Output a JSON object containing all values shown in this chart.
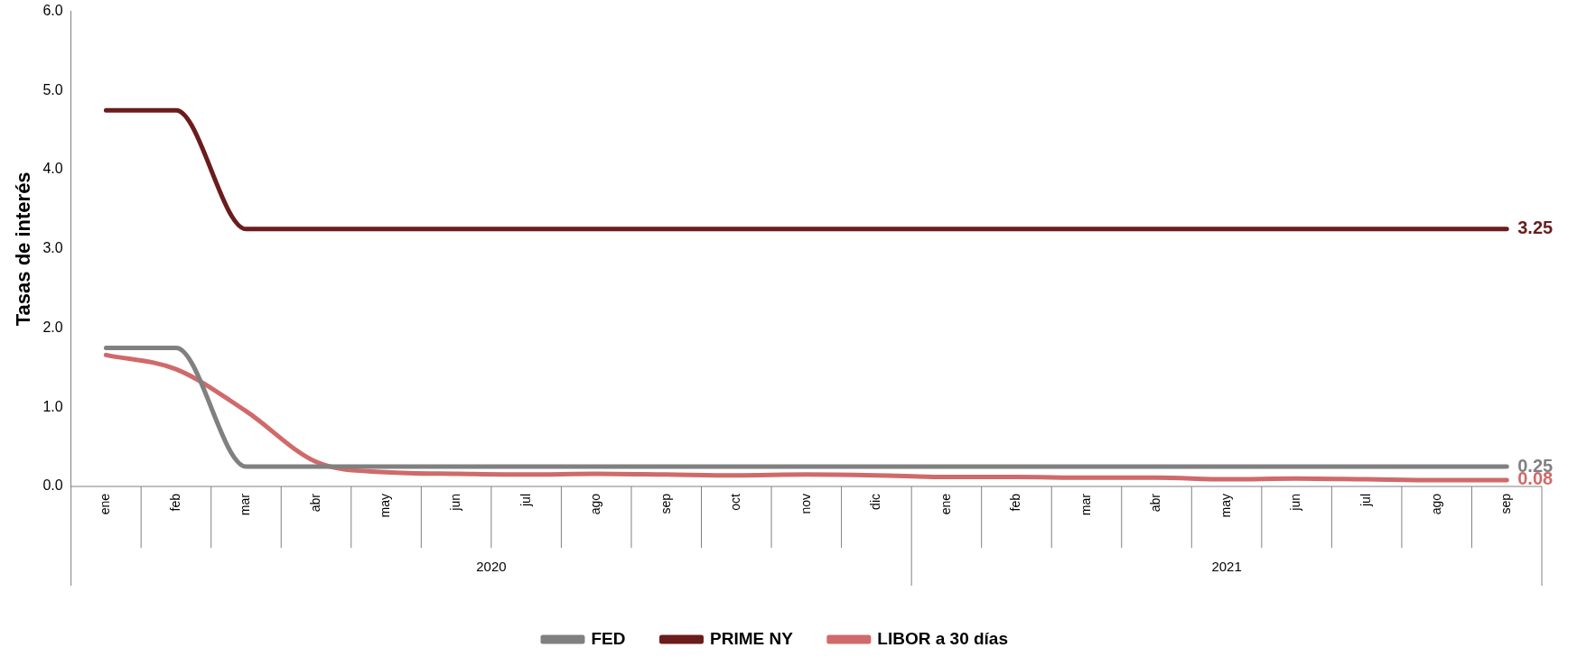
{
  "chart_data": {
    "type": "line",
    "ylabel": "Tasas de interés",
    "categories": [
      "ene",
      "feb",
      "mar",
      "abr",
      "may",
      "jun",
      "jul",
      "ago",
      "sep",
      "oct",
      "nov",
      "dic",
      "ene",
      "feb",
      "mar",
      "abr",
      "may",
      "jun",
      "jul",
      "ago",
      "sep"
    ],
    "annotations": [
      "2020",
      "2021"
    ],
    "ylim": [
      0,
      6
    ],
    "yticks": [
      {
        "value": 0,
        "label": "0.0"
      },
      {
        "value": 1,
        "label": "1.0"
      },
      {
        "value": 2,
        "label": "2.0"
      },
      {
        "value": 3,
        "label": "3.0"
      },
      {
        "value": 4,
        "label": "4.0"
      },
      {
        "value": 5,
        "label": "5.0"
      },
      {
        "value": 6,
        "label": "6.0"
      }
    ],
    "grid": false,
    "legend": "bottom",
    "marker": "none",
    "line_style": "solid",
    "series": [
      {
        "name": "FED",
        "color": "#808080",
        "values": [
          1.75,
          1.75,
          0.25,
          0.25,
          0.25,
          0.25,
          0.25,
          0.25,
          0.25,
          0.25,
          0.25,
          0.25,
          0.25,
          0.25,
          0.25,
          0.25,
          0.25,
          0.25,
          0.25,
          0.25,
          0.25
        ],
        "value_labels": [
          null,
          null,
          null,
          null,
          null,
          null,
          null,
          null,
          null,
          null,
          null,
          null,
          null,
          null,
          null,
          null,
          null,
          null,
          null,
          null,
          "0.25"
        ]
      },
      {
        "name": "PRIME NY",
        "color": "#6b1c1c",
        "values": [
          4.75,
          4.75,
          3.25,
          3.25,
          3.25,
          3.25,
          3.25,
          3.25,
          3.25,
          3.25,
          3.25,
          3.25,
          3.25,
          3.25,
          3.25,
          3.25,
          3.25,
          3.25,
          3.25,
          3.25,
          3.25
        ],
        "value_labels": [
          null,
          null,
          null,
          null,
          null,
          null,
          null,
          null,
          null,
          null,
          null,
          null,
          null,
          null,
          null,
          null,
          null,
          null,
          null,
          null,
          "3.25"
        ]
      },
      {
        "name": "LIBOR a 30 días",
        "color": "#d06a6a",
        "values": [
          1.66,
          1.48,
          0.95,
          0.31,
          0.18,
          0.16,
          0.15,
          0.16,
          0.15,
          0.14,
          0.15,
          0.14,
          0.12,
          0.12,
          0.11,
          0.11,
          0.09,
          0.1,
          0.09,
          0.08,
          0.08
        ],
        "value_labels": [
          null,
          null,
          null,
          null,
          null,
          null,
          null,
          null,
          null,
          null,
          null,
          null,
          null,
          null,
          null,
          null,
          null,
          null,
          null,
          null,
          "0.08"
        ]
      }
    ]
  }
}
